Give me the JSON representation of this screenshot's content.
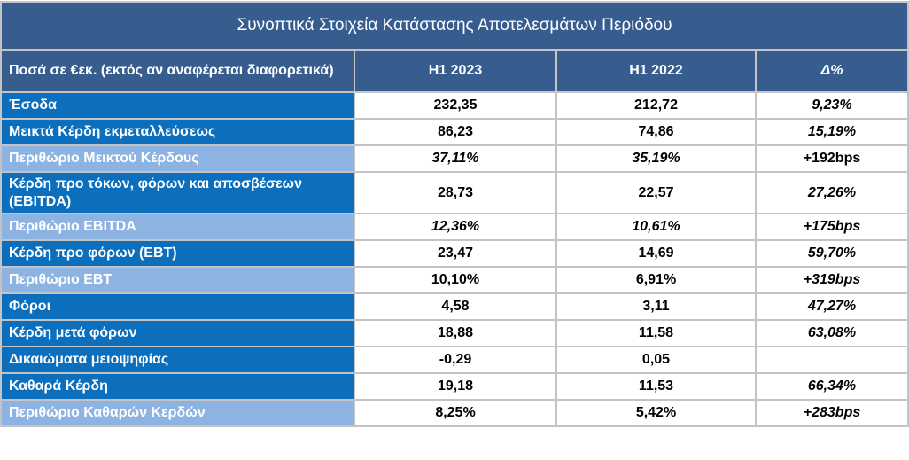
{
  "title": "Συνοπτικά Στοιχεία Κατάστασης Αποτελεσμάτων Περιόδου",
  "headers": {
    "label": "Ποσά σε €εκ. (εκτός αν αναφέρεται διαφορετικά)",
    "h1_2023": "H1 2023",
    "h1_2022": "H1 2022",
    "delta": "Δ%"
  },
  "rows": [
    {
      "label": "Έσοδα",
      "h1_2023": "232,35",
      "h1_2022": "212,72",
      "delta": "9,23%"
    },
    {
      "label": "Μεικτά Κέρδη εκμεταλλεύσεως",
      "h1_2023": "86,23",
      "h1_2022": "74,86",
      "delta": "15,19%"
    },
    {
      "label": "Περιθώριο Μεικτού Κέρδους",
      "h1_2023": "37,11%",
      "h1_2022": "35,19%",
      "delta": "+192bps"
    },
    {
      "label": "Κέρδη προ τόκων, φόρων και αποσβέσεων (EBITDA)",
      "h1_2023": "28,73",
      "h1_2022": "22,57",
      "delta": "27,26%"
    },
    {
      "label": "Περιθώριο EBITDA",
      "h1_2023": "12,36%",
      "h1_2022": "10,61%",
      "delta": "+175bps"
    },
    {
      "label": "Κέρδη προ φόρων (EBT)",
      "h1_2023": "23,47",
      "h1_2022": "14,69",
      "delta": "59,70%"
    },
    {
      "label": "Περιθώριο EBT",
      "h1_2023": "10,10%",
      "h1_2022": "6,91%",
      "delta": "+319bps"
    },
    {
      "label": "Φόροι",
      "h1_2023": "4,58",
      "h1_2022": "3,11",
      "delta": "47,27%"
    },
    {
      "label": "Κέρδη μετά φόρων",
      "h1_2023": "18,88",
      "h1_2022": "11,58",
      "delta": "63,08%"
    },
    {
      "label": "Δικαιώματα μειοψηφίας",
      "h1_2023": "-0,29",
      "h1_2022": "0,05",
      "delta": ""
    },
    {
      "label": "Καθαρά Κέρδη",
      "h1_2023": "19,18",
      "h1_2022": "11,53",
      "delta": "66,34%"
    },
    {
      "label": "Περιθώριο Καθαρών Κερδών",
      "h1_2023": "8,25%",
      "h1_2022": "5,42%",
      "delta": "+283bps"
    }
  ],
  "colors": {
    "header": "#375d8f",
    "label_dark": "#0b6fbd",
    "label_light": "#8db3e2",
    "border": "#c4c4c4"
  }
}
